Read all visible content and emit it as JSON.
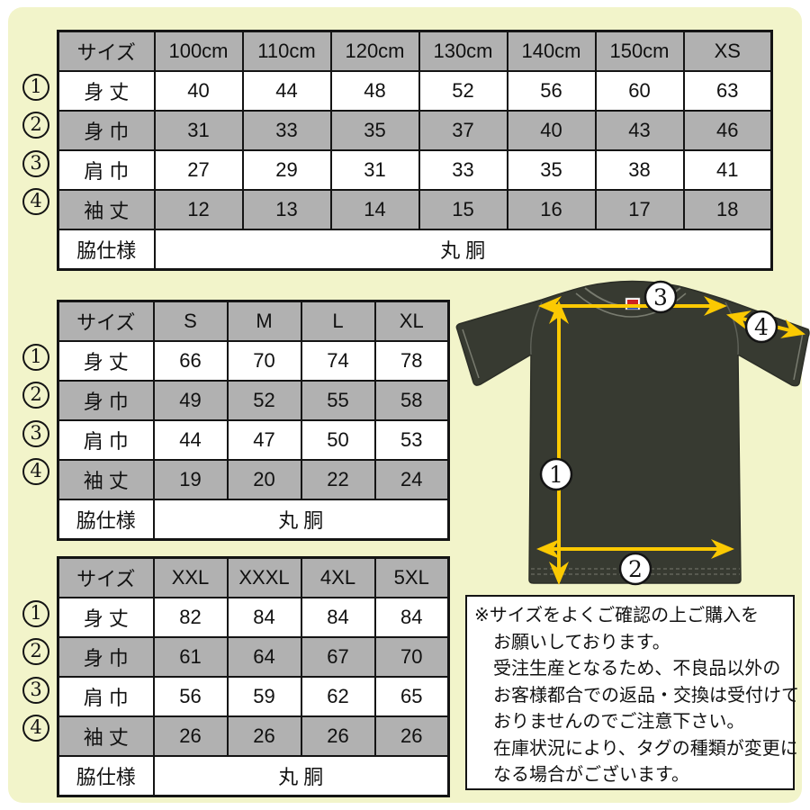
{
  "colors": {
    "background": "#f2f4ca",
    "table_band_gray": "#b1b1b1",
    "table_border": "#141414",
    "shirt_body": "#373a31",
    "shirt_seam": "#6d7066",
    "arrow_yellow": "#fbc902",
    "tag_red": "#cc2222",
    "tag_blue": "#2244aa"
  },
  "markers": [
    "1",
    "2",
    "3",
    "4"
  ],
  "shirt_markers": [
    "1",
    "2",
    "3",
    "4"
  ],
  "tables": [
    {
      "columns": [
        "サイズ",
        "100cm",
        "110cm",
        "120cm",
        "130cm",
        "140cm",
        "150cm",
        "XS"
      ],
      "rows": [
        {
          "marker": "1",
          "label": "身 丈",
          "values": [
            "40",
            "44",
            "48",
            "52",
            "56",
            "60",
            "63"
          ]
        },
        {
          "marker": "2",
          "label": "身 巾",
          "values": [
            "31",
            "33",
            "35",
            "37",
            "40",
            "43",
            "46"
          ]
        },
        {
          "marker": "3",
          "label": "肩 巾",
          "values": [
            "27",
            "29",
            "31",
            "33",
            "35",
            "38",
            "41"
          ]
        },
        {
          "marker": "4",
          "label": "袖 丈",
          "values": [
            "12",
            "13",
            "14",
            "15",
            "16",
            "17",
            "18"
          ]
        }
      ],
      "footer_label": "脇仕様",
      "footer_value": "丸 胴"
    },
    {
      "columns": [
        "サイズ",
        "S",
        "M",
        "L",
        "XL"
      ],
      "rows": [
        {
          "marker": "1",
          "label": "身 丈",
          "values": [
            "66",
            "70",
            "74",
            "78"
          ]
        },
        {
          "marker": "2",
          "label": "身 巾",
          "values": [
            "49",
            "52",
            "55",
            "58"
          ]
        },
        {
          "marker": "3",
          "label": "肩 巾",
          "values": [
            "44",
            "47",
            "50",
            "53"
          ]
        },
        {
          "marker": "4",
          "label": "袖 丈",
          "values": [
            "19",
            "20",
            "22",
            "24"
          ]
        }
      ],
      "footer_label": "脇仕様",
      "footer_value": "丸 胴"
    },
    {
      "columns": [
        "サイズ",
        "XXL",
        "XXXL",
        "4XL",
        "5XL"
      ],
      "rows": [
        {
          "marker": "1",
          "label": "身 丈",
          "values": [
            "82",
            "84",
            "84",
            "84"
          ]
        },
        {
          "marker": "2",
          "label": "身 巾",
          "values": [
            "61",
            "64",
            "67",
            "70"
          ]
        },
        {
          "marker": "3",
          "label": "肩 巾",
          "values": [
            "56",
            "59",
            "62",
            "65"
          ]
        },
        {
          "marker": "4",
          "label": "袖 丈",
          "values": [
            "26",
            "26",
            "26",
            "26"
          ]
        }
      ],
      "footer_label": "脇仕様",
      "footer_value": "丸 胴"
    }
  ],
  "note": {
    "lines": [
      "※サイズをよくご確認の上ご購入を",
      "お願いしております。",
      "受注生産となるため、不良品以外の",
      "お客様都合での返品・交換は受付けて",
      "おりませんのでご注意下さい。",
      "在庫状況により、タグの種類が変更に",
      "なる場合がございます。"
    ]
  }
}
